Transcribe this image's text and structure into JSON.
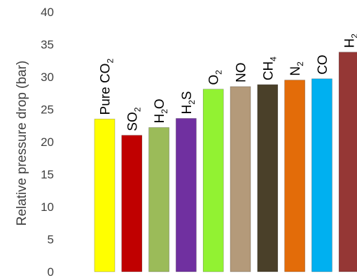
{
  "chart_data": {
    "type": "bar",
    "title": "",
    "xlabel": "",
    "ylabel": "Relative pressure drop (bar)",
    "ylim": [
      0,
      40
    ],
    "yticks": [
      "0",
      "5",
      "10",
      "15",
      "20",
      "25",
      "30",
      "35",
      "40"
    ],
    "grid": false,
    "legend": "none",
    "categories": [
      {
        "text": "Pure CO",
        "sub": "2"
      },
      {
        "text": "SO",
        "sub": "2"
      },
      {
        "text": "H",
        "sub": "2",
        "tail": "O"
      },
      {
        "text": "H",
        "sub": "2",
        "tail": "S"
      },
      {
        "text": "O",
        "sub": "2"
      },
      {
        "text": "NO"
      },
      {
        "text": "CH",
        "sub": "4"
      },
      {
        "text": "N",
        "sub": "2"
      },
      {
        "text": "CO"
      },
      {
        "text": "H",
        "sub": "2"
      }
    ],
    "values": [
      23.5,
      21.0,
      22.2,
      23.6,
      28.1,
      28.5,
      28.8,
      29.5,
      29.7,
      33.8
    ],
    "colors": [
      "#ffff00",
      "#c00000",
      "#9bbb59",
      "#7030a0",
      "#92f232",
      "#b49a7a",
      "#4a4029",
      "#e36c09",
      "#00b0f0",
      "#953735"
    ]
  }
}
